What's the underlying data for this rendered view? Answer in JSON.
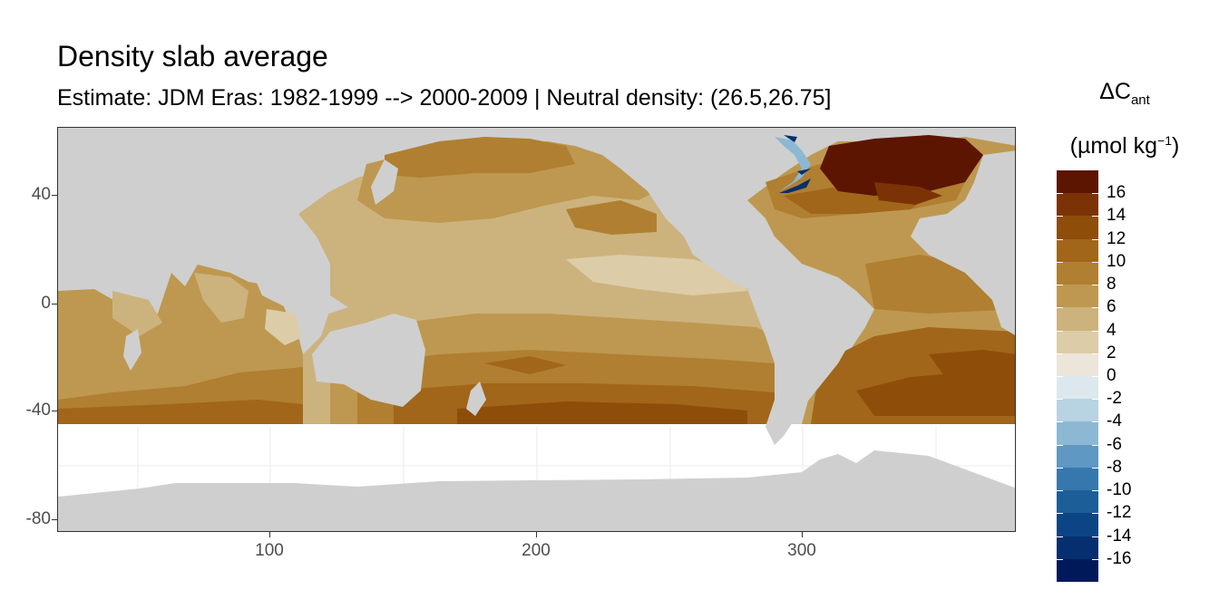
{
  "title": "Density slab average",
  "subtitle": "Estimate: JDM Eras: 1982-1999 --> 2000-2009 | Neutral density: (26.5,26.75]",
  "legend": {
    "title_symbol": "ΔC",
    "title_subscript": "ant",
    "unit_prefix": "(µmol kg",
    "unit_superscript": "−1",
    "unit_suffix": ")",
    "colors": [
      "#5c1500",
      "#7b3306",
      "#8f4d0a",
      "#a1661a",
      "#b07f31",
      "#be9850",
      "#ccb37d",
      "#ddcca8",
      "#ebe5da",
      "#dde8ee",
      "#b8d3e2",
      "#8cb8d4",
      "#5e98c3",
      "#3678ad",
      "#1b5e98",
      "#0c4585",
      "#052f6e",
      "#001a59"
    ],
    "labels": [
      "16",
      "14",
      "12",
      "10",
      "8",
      "6",
      "4",
      "2",
      "0",
      "-2",
      "-4",
      "-6",
      "-8",
      "-10",
      "-12",
      "-14",
      "-16"
    ]
  },
  "axes": {
    "y_ticks": [
      "40",
      "0",
      "-40",
      "-80"
    ],
    "x_ticks": [
      "100",
      "200",
      "300"
    ]
  },
  "colors": {
    "land": "#cfcfcf",
    "antarctic_gap": "#ffffff",
    "grid": "#ebebeb"
  }
}
